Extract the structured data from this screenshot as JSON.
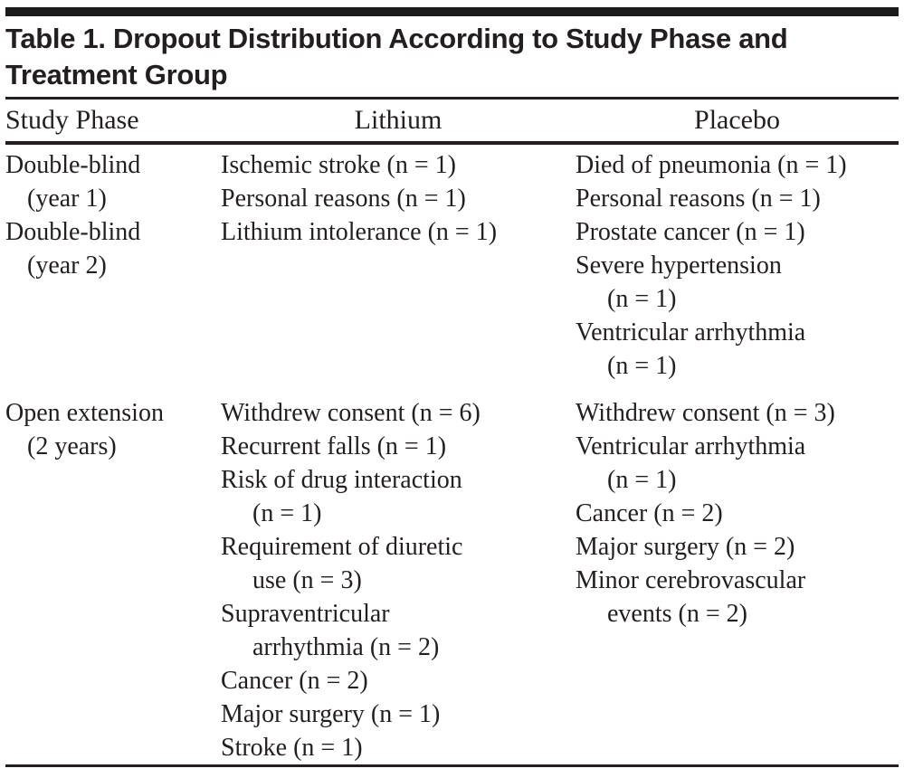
{
  "colors": {
    "background": "#ffffff",
    "text": "#231f20",
    "rule": "#231f20",
    "top_bar": "#1b1b1b"
  },
  "table_title": {
    "full": "Table 1. Dropout Distribution According to Study Phase and Treatment Group",
    "lines": [
      "Table 1. Dropout Distribution According to Study Phase and",
      "Treatment Group"
    ]
  },
  "columns": [
    {
      "label": "Study Phase",
      "align": "left"
    },
    {
      "label": "Lithium",
      "align": "center"
    },
    {
      "label": "Placebo",
      "align": "center"
    }
  ],
  "sections": [
    {
      "phase_lines": [
        {
          "text": "Double-blind",
          "indent": false
        },
        {
          "text": "(year 1)",
          "indent": true
        },
        {
          "text": "Double-blind",
          "indent": false
        },
        {
          "text": "(year 2)",
          "indent": true
        }
      ],
      "lithium_lines": [
        {
          "text": "Ischemic stroke (n = 1)",
          "indent": false
        },
        {
          "text": "Personal reasons (n = 1)",
          "indent": false
        },
        {
          "text": "Lithium intolerance (n = 1)",
          "indent": false
        }
      ],
      "placebo_lines": [
        {
          "text": "Died of pneumonia (n = 1)",
          "indent": false
        },
        {
          "text": "Personal reasons (n = 1)",
          "indent": false
        },
        {
          "text": "Prostate cancer (n = 1)",
          "indent": false
        },
        {
          "text": "Severe hypertension",
          "indent": false
        },
        {
          "text": "(n = 1)",
          "indent": true
        },
        {
          "text": "Ventricular arrhythmia",
          "indent": false
        },
        {
          "text": "(n = 1)",
          "indent": true
        }
      ]
    },
    {
      "phase_lines": [
        {
          "text": "Open extension",
          "indent": false
        },
        {
          "text": "(2 years)",
          "indent": true
        }
      ],
      "lithium_lines": [
        {
          "text": "Withdrew consent (n = 6)",
          "indent": false
        },
        {
          "text": "Recurrent falls (n = 1)",
          "indent": false
        },
        {
          "text": "Risk of drug interaction",
          "indent": false
        },
        {
          "text": "(n = 1)",
          "indent": true
        },
        {
          "text": "Requirement of diuretic",
          "indent": false
        },
        {
          "text": "use (n = 3)",
          "indent": true
        },
        {
          "text": "Supraventricular",
          "indent": false
        },
        {
          "text": "arrhythmia (n = 2)",
          "indent": true
        },
        {
          "text": "Cancer (n = 2)",
          "indent": false
        },
        {
          "text": "Major surgery (n = 1)",
          "indent": false
        },
        {
          "text": "Stroke (n = 1)",
          "indent": false
        }
      ],
      "placebo_lines": [
        {
          "text": "Withdrew consent (n = 3)",
          "indent": false
        },
        {
          "text": "Ventricular arrhythmia",
          "indent": false
        },
        {
          "text": "(n = 1)",
          "indent": true
        },
        {
          "text": "Cancer (n = 2)",
          "indent": false
        },
        {
          "text": "Major surgery (n = 2)",
          "indent": false
        },
        {
          "text": "Minor cerebrovascular",
          "indent": false
        },
        {
          "text": "events (n = 2)",
          "indent": true
        }
      ]
    }
  ]
}
